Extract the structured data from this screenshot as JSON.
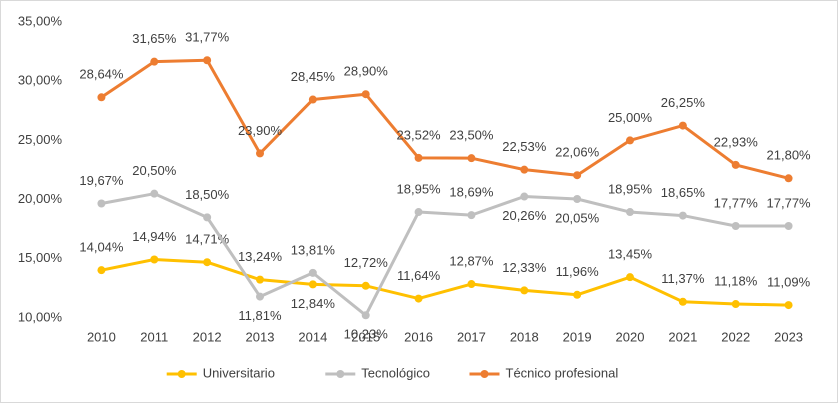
{
  "chart_data": {
    "type": "line",
    "categories": [
      "2010",
      "2011",
      "2012",
      "2013",
      "2014",
      "2015",
      "2016",
      "2017",
      "2018",
      "2019",
      "2020",
      "2021",
      "2022",
      "2023"
    ],
    "series": [
      {
        "name": "Universitario",
        "color": "#FFC000",
        "values": [
          14.04,
          14.94,
          14.71,
          13.24,
          12.84,
          12.72,
          11.64,
          12.87,
          12.33,
          11.96,
          13.45,
          11.37,
          11.18,
          11.09
        ],
        "value_labels": [
          "14,04%",
          "14,94%",
          "14,71%",
          "13,24%",
          "12,84%",
          "12,72%",
          "11,64%",
          "12,87%",
          "12,33%",
          "11,96%",
          "13,45%",
          "11,37%",
          "11,18%",
          "11,09%"
        ]
      },
      {
        "name": "Tecnológico",
        "color": "#BFBFBF",
        "values": [
          19.67,
          20.5,
          18.5,
          11.81,
          13.81,
          10.23,
          18.95,
          18.69,
          20.26,
          20.05,
          18.95,
          18.65,
          17.77,
          17.77
        ],
        "value_labels": [
          "19,67%",
          "20,50%",
          "18,50%",
          "11,81%",
          "13,81%",
          "10,23%",
          "18,95%",
          "18,69%",
          "20,26%",
          "20,05%",
          "18,95%",
          "18,65%",
          "17,77%",
          "17,77%"
        ]
      },
      {
        "name": "Técnico profesional",
        "color": "#ED7D31",
        "values": [
          28.64,
          31.65,
          31.77,
          23.9,
          28.45,
          28.9,
          23.52,
          23.5,
          22.53,
          22.06,
          25.0,
          26.25,
          22.93,
          21.8
        ],
        "value_labels": [
          "28,64%",
          "31,65%",
          "31,77%",
          "23,90%",
          "28,45%",
          "28,90%",
          "23,52%",
          "23,50%",
          "22,53%",
          "22,06%",
          "25,00%",
          "26,25%",
          "22,93%",
          "21,80%"
        ]
      }
    ],
    "ylim": [
      10,
      35
    ],
    "yticks": [
      {
        "value": 10,
        "label": "10,00%"
      },
      {
        "value": 15,
        "label": "15,00%"
      },
      {
        "value": 20,
        "label": "20,00%"
      },
      {
        "value": 25,
        "label": "25,00%"
      },
      {
        "value": 30,
        "label": "30,00%"
      },
      {
        "value": 35,
        "label": "35,00%"
      }
    ],
    "grid": false,
    "legend": "bottom"
  }
}
